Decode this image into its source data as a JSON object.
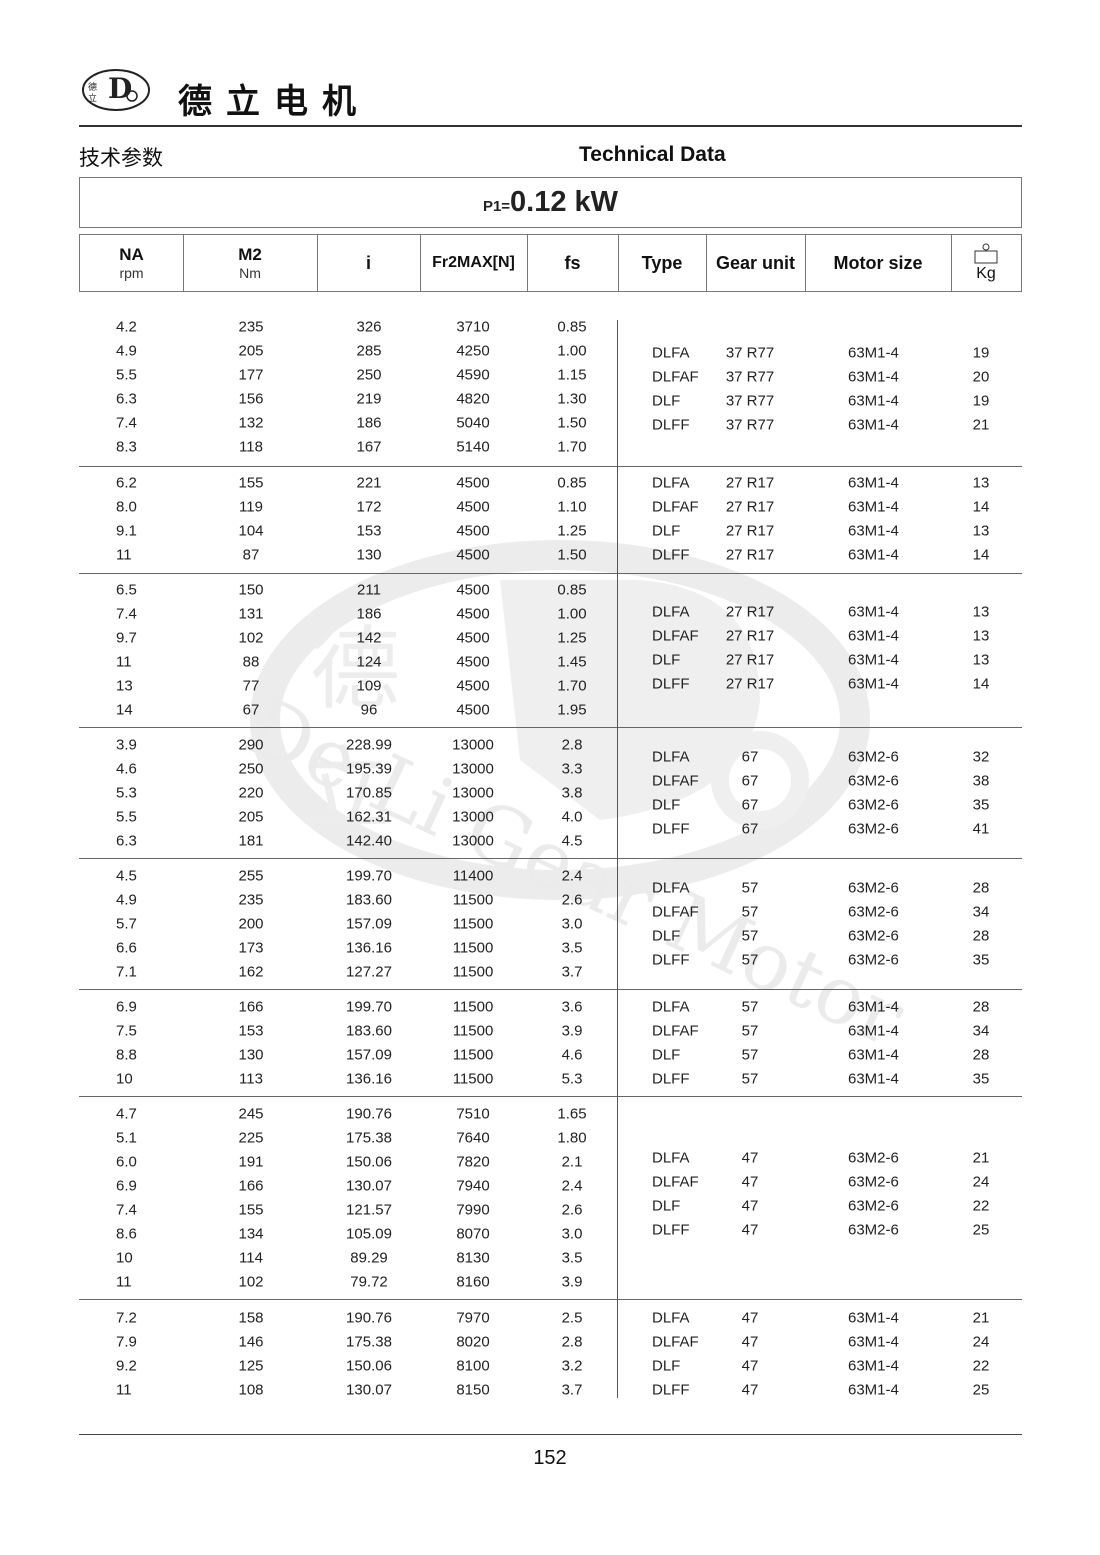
{
  "header": {
    "brand_cn": "德立电机",
    "logo_text": "De Li Gear Motor",
    "title_cn": "技术参数",
    "title_en": "Technical Data"
  },
  "power": {
    "prefix": "P1=",
    "value": "0.12 kW"
  },
  "columns": [
    {
      "label": "NA",
      "unit": "rpm"
    },
    {
      "label": "M2",
      "unit": "Nm"
    },
    {
      "label": "i",
      "unit": ""
    },
    {
      "label": "Fr2MAX[N]",
      "unit": ""
    },
    {
      "label": "fs",
      "unit": ""
    },
    {
      "label": "Type",
      "unit": ""
    },
    {
      "label": "Gear unit",
      "unit": ""
    },
    {
      "label": "Motor size",
      "unit": ""
    },
    {
      "label": "",
      "unit": "Kg",
      "icon": "weight-icon"
    }
  ],
  "groups": [
    {
      "rows": [
        [
          "4.2",
          "235",
          "326",
          "3710",
          "0.85"
        ],
        [
          "4.9",
          "205",
          "285",
          "4250",
          "1.00"
        ],
        [
          "5.5",
          "177",
          "250",
          "4590",
          "1.15"
        ],
        [
          "6.3",
          "156",
          "219",
          "4820",
          "1.30"
        ],
        [
          "7.4",
          "132",
          "186",
          "5040",
          "1.50"
        ],
        [
          "8.3",
          "118",
          "167",
          "5140",
          "1.70"
        ]
      ],
      "units": [
        [
          "DLFA",
          "37 R77",
          "63M1-4",
          "19"
        ],
        [
          "DLFAF",
          "37 R77",
          "63M1-4",
          "20"
        ],
        [
          "DLF",
          "37 R77",
          "63M1-4",
          "19"
        ],
        [
          "DLFF",
          "37 R77",
          "63M1-4",
          "21"
        ]
      ]
    },
    {
      "rows": [
        [
          "6.2",
          "155",
          "221",
          "4500",
          "0.85"
        ],
        [
          "8.0",
          "119",
          "172",
          "4500",
          "1.10"
        ],
        [
          "9.1",
          "104",
          "153",
          "4500",
          "1.25"
        ],
        [
          "11",
          "87",
          "130",
          "4500",
          "1.50"
        ]
      ],
      "units": [
        [
          "DLFA",
          "27 R17",
          "63M1-4",
          "13"
        ],
        [
          "DLFAF",
          "27 R17",
          "63M1-4",
          "14"
        ],
        [
          "DLF",
          "27 R17",
          "63M1-4",
          "13"
        ],
        [
          "DLFF",
          "27 R17",
          "63M1-4",
          "14"
        ]
      ]
    },
    {
      "rows": [
        [
          "6.5",
          "150",
          "211",
          "4500",
          "0.85"
        ],
        [
          "7.4",
          "131",
          "186",
          "4500",
          "1.00"
        ],
        [
          "9.7",
          "102",
          "142",
          "4500",
          "1.25"
        ],
        [
          "11",
          "88",
          "124",
          "4500",
          "1.45"
        ],
        [
          "13",
          "77",
          "109",
          "4500",
          "1.70"
        ],
        [
          "14",
          "67",
          "96",
          "4500",
          "1.95"
        ]
      ],
      "units": [
        [
          "DLFA",
          "27 R17",
          "63M1-4",
          "13"
        ],
        [
          "DLFAF",
          "27 R17",
          "63M1-4",
          "13"
        ],
        [
          "DLF",
          "27 R17",
          "63M1-4",
          "13"
        ],
        [
          "DLFF",
          "27 R17",
          "63M1-4",
          "14"
        ]
      ]
    },
    {
      "rows": [
        [
          "3.9",
          "290",
          "228.99",
          "13000",
          "2.8"
        ],
        [
          "4.6",
          "250",
          "195.39",
          "13000",
          "3.3"
        ],
        [
          "5.3",
          "220",
          "170.85",
          "13000",
          "3.8"
        ],
        [
          "5.5",
          "205",
          "162.31",
          "13000",
          "4.0"
        ],
        [
          "6.3",
          "181",
          "142.40",
          "13000",
          "4.5"
        ]
      ],
      "units": [
        [
          "DLFA",
          "67",
          "63M2-6",
          "32"
        ],
        [
          "DLFAF",
          "67",
          "63M2-6",
          "38"
        ],
        [
          "DLF",
          "67",
          "63M2-6",
          "35"
        ],
        [
          "DLFF",
          "67",
          "63M2-6",
          "41"
        ]
      ]
    },
    {
      "rows": [
        [
          "4.5",
          "255",
          "199.70",
          "11400",
          "2.4"
        ],
        [
          "4.9",
          "235",
          "183.60",
          "11500",
          "2.6"
        ],
        [
          "5.7",
          "200",
          "157.09",
          "11500",
          "3.0"
        ],
        [
          "6.6",
          "173",
          "136.16",
          "11500",
          "3.5"
        ],
        [
          "7.1",
          "162",
          "127.27",
          "11500",
          "3.7"
        ]
      ],
      "units": [
        [
          "DLFA",
          "57",
          "63M2-6",
          "28"
        ],
        [
          "DLFAF",
          "57",
          "63M2-6",
          "34"
        ],
        [
          "DLF",
          "57",
          "63M2-6",
          "28"
        ],
        [
          "DLFF",
          "57",
          "63M2-6",
          "35"
        ]
      ]
    },
    {
      "rows": [
        [
          "6.9",
          "166",
          "199.70",
          "11500",
          "3.6"
        ],
        [
          "7.5",
          "153",
          "183.60",
          "11500",
          "3.9"
        ],
        [
          "8.8",
          "130",
          "157.09",
          "11500",
          "4.6"
        ],
        [
          "10",
          "113",
          "136.16",
          "11500",
          "5.3"
        ]
      ],
      "units": [
        [
          "DLFA",
          "57",
          "63M1-4",
          "28"
        ],
        [
          "DLFAF",
          "57",
          "63M1-4",
          "34"
        ],
        [
          "DLF",
          "57",
          "63M1-4",
          "28"
        ],
        [
          "DLFF",
          "57",
          "63M1-4",
          "35"
        ]
      ]
    },
    {
      "rows": [
        [
          "4.7",
          "245",
          "190.76",
          "7510",
          "1.65"
        ],
        [
          "5.1",
          "225",
          "175.38",
          "7640",
          "1.80"
        ],
        [
          "6.0",
          "191",
          "150.06",
          "7820",
          "2.1"
        ],
        [
          "6.9",
          "166",
          "130.07",
          "7940",
          "2.4"
        ],
        [
          "7.4",
          "155",
          "121.57",
          "7990",
          "2.6"
        ],
        [
          "8.6",
          "134",
          "105.09",
          "8070",
          "3.0"
        ],
        [
          "10",
          "114",
          "89.29",
          "8130",
          "3.5"
        ],
        [
          "11",
          "102",
          "79.72",
          "8160",
          "3.9"
        ]
      ],
      "units": [
        [
          "DLFA",
          "47",
          "63M2-6",
          "21"
        ],
        [
          "DLFAF",
          "47",
          "63M2-6",
          "24"
        ],
        [
          "DLF",
          "47",
          "63M2-6",
          "22"
        ],
        [
          "DLFF",
          "47",
          "63M2-6",
          "25"
        ]
      ]
    },
    {
      "rows": [
        [
          "7.2",
          "158",
          "190.76",
          "7970",
          "2.5"
        ],
        [
          "7.9",
          "146",
          "175.38",
          "8020",
          "2.8"
        ],
        [
          "9.2",
          "125",
          "150.06",
          "8100",
          "3.2"
        ],
        [
          "11",
          "108",
          "130.07",
          "8150",
          "3.7"
        ]
      ],
      "units": [
        [
          "DLFA",
          "47",
          "63M1-4",
          "21"
        ],
        [
          "DLFAF",
          "47",
          "63M1-4",
          "24"
        ],
        [
          "DLF",
          "47",
          "63M1-4",
          "22"
        ],
        [
          "DLFF",
          "47",
          "63M1-4",
          "25"
        ]
      ]
    }
  ],
  "watermark": "De Li Gear Motor",
  "footer": {
    "page_number": "152"
  }
}
